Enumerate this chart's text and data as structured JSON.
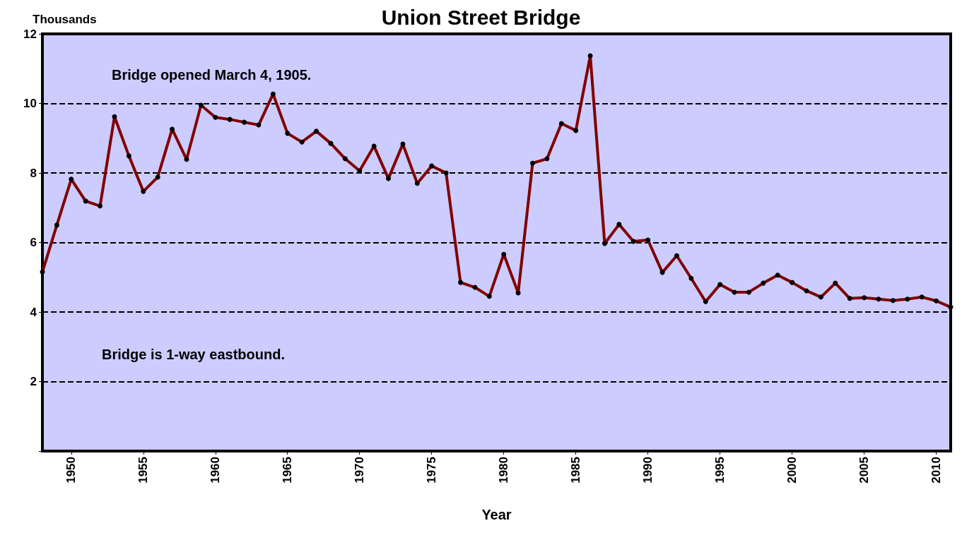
{
  "chart_data": {
    "type": "line",
    "title": "Union Street Bridge",
    "xlabel": "Year",
    "ylabel": "Thousands",
    "annotations": [
      "Bridge opened March 4, 1905.",
      "Bridge is 1-way eastbound."
    ],
    "x": [
      1948,
      1949,
      1950,
      1951,
      1952,
      1953,
      1954,
      1955,
      1956,
      1957,
      1958,
      1959,
      1960,
      1961,
      1962,
      1963,
      1964,
      1965,
      1966,
      1967,
      1968,
      1969,
      1970,
      1971,
      1972,
      1973,
      1974,
      1975,
      1976,
      1977,
      1978,
      1979,
      1980,
      1981,
      1982,
      1983,
      1984,
      1985,
      1986,
      1987,
      1988,
      1989,
      1990,
      1991,
      1992,
      1993,
      1994,
      1995,
      1996,
      1997,
      1998,
      1999,
      2000,
      2001,
      2002,
      2003,
      2004,
      2005,
      2006,
      2007,
      2008,
      2009,
      2010,
      2011
    ],
    "series": [
      {
        "color": "#800000",
        "values": [
          5.15,
          6.5,
          7.82,
          7.19,
          7.05,
          9.62,
          8.49,
          7.47,
          7.88,
          9.26,
          8.39,
          9.95,
          9.6,
          9.54,
          9.46,
          9.38,
          10.27,
          9.14,
          8.89,
          9.2,
          8.85,
          8.41,
          8.06,
          8.77,
          7.84,
          8.83,
          7.7,
          8.2,
          8.0,
          4.85,
          4.71,
          4.45,
          5.66,
          4.55,
          8.28,
          8.41,
          9.42,
          9.22,
          11.37,
          5.97,
          6.52,
          6.03,
          6.07,
          5.14,
          5.62,
          4.97,
          4.3,
          4.79,
          4.57,
          4.57,
          4.83,
          5.06,
          4.85,
          4.61,
          4.43,
          4.83,
          4.39,
          4.41,
          4.37,
          4.33,
          4.37,
          4.43,
          4.32,
          4.14
        ]
      }
    ],
    "xlim": [
      1948,
      2011
    ],
    "xticks": [
      1950,
      1955,
      1960,
      1965,
      1970,
      1975,
      1980,
      1985,
      1990,
      1995,
      2000,
      2005,
      2010
    ],
    "ylim": [
      0,
      12
    ],
    "yticks": [
      {
        "value": 0,
        "label": null
      },
      2,
      4,
      6,
      8,
      10,
      12
    ],
    "grid": "y",
    "marker": "circle",
    "line_style": "solid"
  }
}
